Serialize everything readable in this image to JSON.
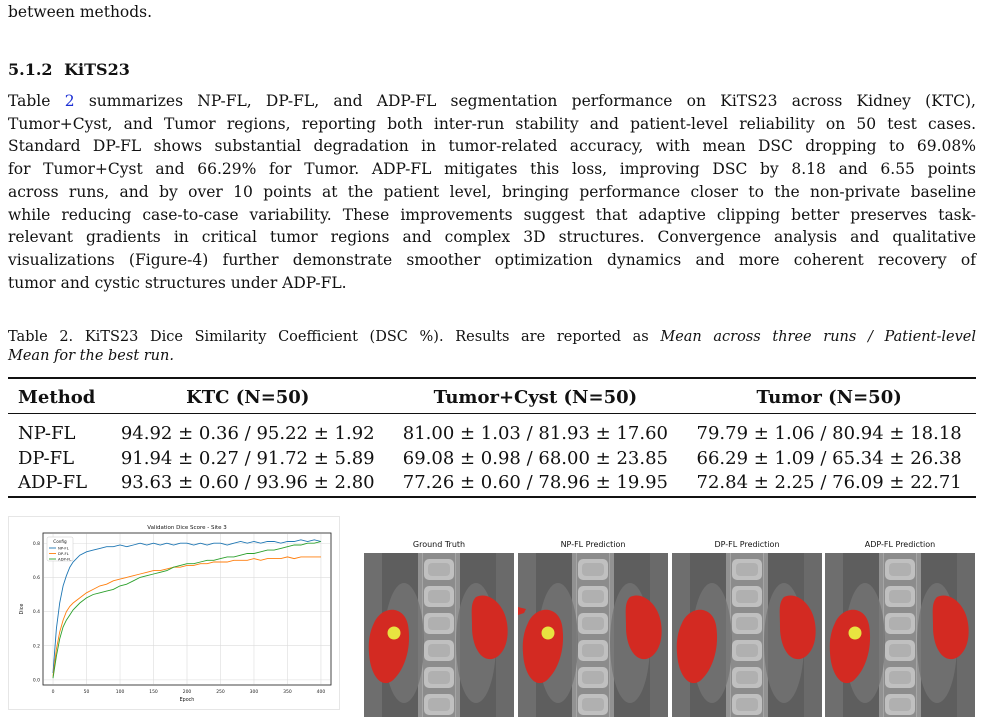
{
  "top_text": "between methods.",
  "section": {
    "number": "5.1.2",
    "title": "KiTS23"
  },
  "paragraph": [
    [
      "Table ",
      "2",
      " summarizes NP-FL, DP-FL, and ADP-FL segmentation performance on KiTS23 across Kidney (KTC),"
    ],
    [
      "Tumor+Cyst, and Tumor regions, reporting both inter-run stability and patient-level reliability on 50 test cases."
    ],
    [
      "Standard DP-FL shows substantial degradation in tumor-related accuracy, with mean DSC dropping to 69.08%"
    ],
    [
      "for Tumor+Cyst and 66.29% for Tumor.  ADP-FL mitigates this loss, improving DSC by 8.18 and 6.55 points"
    ],
    [
      "across runs, and by over 10 points at the patient level, bringing performance closer to the non-private baseline"
    ],
    [
      "while reducing case-to-case variability. These improvements suggest that adaptive clipping better preserves task-"
    ],
    [
      "relevant gradients in critical tumor regions and complex 3D structures.  Convergence analysis and qualitative"
    ],
    [
      "visualizations (Figure-4) further demonstrate smoother optimization dynamics and more coherent recovery of"
    ],
    [
      "tumor and cystic structures under ADP-FL."
    ]
  ],
  "caption": {
    "line1_plain": "Table 2. KiTS23 Dice Similarity Coefficient (DSC %).  Results are reported as ",
    "line1_italic": "Mean across three runs / Patient-level",
    "line2_italic": "Mean for the best run."
  },
  "table": {
    "headers": [
      "Method",
      "KTC (N=50)",
      "Tumor+Cyst (N=50)",
      "Tumor (N=50)"
    ],
    "rows": [
      [
        "NP-FL",
        "94.92 ± 0.36 / 95.22 ± 1.92",
        "81.00 ± 1.03 / 81.93 ± 17.60",
        "79.79 ± 1.06 / 80.94 ± 18.18"
      ],
      [
        "DP-FL",
        "91.94 ± 0.27 / 91.72 ± 5.89",
        "69.08 ± 0.98 / 68.00 ± 23.85",
        "66.29 ± 1.09 / 65.34 ± 26.38"
      ],
      [
        "ADP-FL",
        "93.63 ± 0.60 / 93.96 ± 2.80",
        "77.26 ± 0.60 / 78.96 ± 19.95",
        "72.84 ± 2.25 / 76.09 ± 22.71"
      ]
    ]
  },
  "chart_data": {
    "type": "line",
    "title": "Validation Dice Score - Site 3",
    "xlabel": "Epoch",
    "ylabel": "Dice",
    "xlim": [
      -15,
      415
    ],
    "ylim": [
      -0.03,
      0.86
    ],
    "xticks": [
      0,
      50,
      100,
      150,
      200,
      250,
      300,
      350,
      400
    ],
    "yticks": [
      0.0,
      0.2,
      0.4,
      0.6,
      0.8
    ],
    "grid": true,
    "legend": {
      "title": "Config",
      "placement": "top-left"
    },
    "series": [
      {
        "name": "NP-FL",
        "color": "#1f77b4",
        "x": [
          0,
          5,
          10,
          15,
          20,
          25,
          30,
          40,
          50,
          60,
          70,
          80,
          90,
          100,
          110,
          120,
          130,
          140,
          150,
          160,
          170,
          180,
          190,
          200,
          210,
          220,
          230,
          240,
          250,
          260,
          270,
          280,
          290,
          300,
          310,
          320,
          330,
          340,
          350,
          360,
          370,
          380,
          390,
          400
        ],
        "y": [
          0.04,
          0.3,
          0.45,
          0.55,
          0.61,
          0.66,
          0.69,
          0.73,
          0.75,
          0.76,
          0.77,
          0.78,
          0.78,
          0.79,
          0.78,
          0.79,
          0.8,
          0.79,
          0.8,
          0.79,
          0.8,
          0.79,
          0.8,
          0.8,
          0.79,
          0.8,
          0.79,
          0.8,
          0.8,
          0.79,
          0.8,
          0.81,
          0.8,
          0.81,
          0.8,
          0.81,
          0.81,
          0.8,
          0.81,
          0.81,
          0.82,
          0.81,
          0.82,
          0.81
        ]
      },
      {
        "name": "DP-FL",
        "color": "#ff7f0e",
        "x": [
          0,
          5,
          10,
          15,
          20,
          25,
          30,
          40,
          50,
          60,
          70,
          80,
          90,
          100,
          110,
          120,
          130,
          140,
          150,
          160,
          170,
          180,
          190,
          200,
          210,
          220,
          230,
          240,
          250,
          260,
          270,
          280,
          290,
          300,
          310,
          320,
          330,
          340,
          350,
          360,
          370,
          380,
          390,
          400
        ],
        "y": [
          0.02,
          0.18,
          0.28,
          0.35,
          0.4,
          0.43,
          0.45,
          0.48,
          0.51,
          0.53,
          0.55,
          0.56,
          0.58,
          0.59,
          0.6,
          0.61,
          0.62,
          0.63,
          0.64,
          0.64,
          0.65,
          0.66,
          0.66,
          0.67,
          0.67,
          0.68,
          0.68,
          0.69,
          0.69,
          0.69,
          0.7,
          0.7,
          0.7,
          0.71,
          0.7,
          0.71,
          0.71,
          0.71,
          0.72,
          0.71,
          0.72,
          0.72,
          0.72,
          0.72
        ]
      },
      {
        "name": "ADP-FL",
        "color": "#2ca02c",
        "x": [
          0,
          5,
          10,
          15,
          20,
          25,
          30,
          40,
          50,
          60,
          70,
          80,
          90,
          100,
          110,
          120,
          130,
          140,
          150,
          160,
          170,
          180,
          190,
          200,
          210,
          220,
          230,
          240,
          250,
          260,
          270,
          280,
          290,
          300,
          310,
          320,
          330,
          340,
          350,
          360,
          370,
          380,
          390,
          400
        ],
        "y": [
          0.01,
          0.14,
          0.24,
          0.31,
          0.35,
          0.38,
          0.41,
          0.45,
          0.48,
          0.5,
          0.51,
          0.52,
          0.53,
          0.55,
          0.56,
          0.58,
          0.6,
          0.61,
          0.62,
          0.63,
          0.64,
          0.66,
          0.67,
          0.68,
          0.68,
          0.69,
          0.7,
          0.7,
          0.71,
          0.72,
          0.72,
          0.73,
          0.74,
          0.74,
          0.75,
          0.76,
          0.76,
          0.77,
          0.78,
          0.79,
          0.79,
          0.8,
          0.8,
          0.81
        ]
      }
    ]
  },
  "visualizations": [
    {
      "title": "Ground Truth",
      "tumor": true,
      "extra_blob": false
    },
    {
      "title": "NP-FL Prediction",
      "tumor": true,
      "extra_blob": true
    },
    {
      "title": "DP-FL Prediction",
      "tumor": false,
      "extra_blob": false
    },
    {
      "title": "ADP-FL Prediction",
      "tumor": true,
      "extra_blob": false
    }
  ],
  "colors": {
    "kidney": "#d32a22",
    "tumor": "#e8e440",
    "link": "#1b2fd4"
  }
}
